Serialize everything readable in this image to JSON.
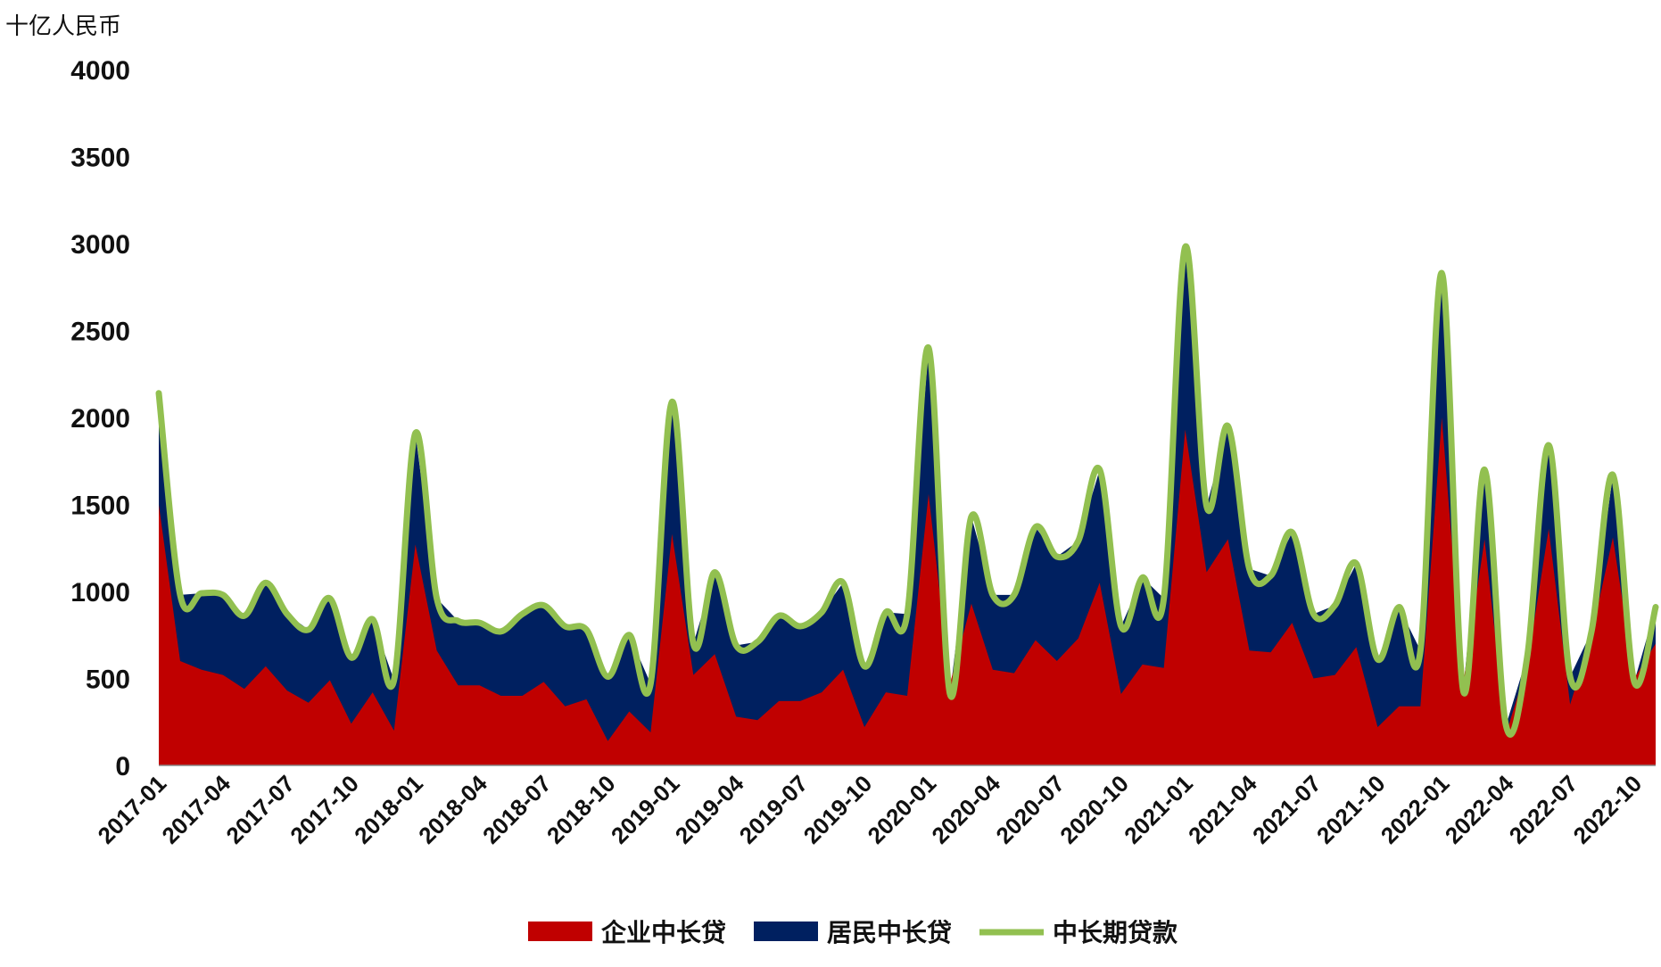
{
  "chart_data": {
    "type": "area",
    "unit_label": "十亿人民币",
    "ylim": [
      0,
      4000
    ],
    "y_ticks": [
      0,
      500,
      1000,
      1500,
      2000,
      2500,
      3000,
      3500,
      4000
    ],
    "grid": false,
    "legend_position": "bottom",
    "x": [
      "2017-01",
      "2017-02",
      "2017-03",
      "2017-04",
      "2017-05",
      "2017-06",
      "2017-07",
      "2017-08",
      "2017-09",
      "2017-10",
      "2017-11",
      "2017-12",
      "2018-01",
      "2018-02",
      "2018-03",
      "2018-04",
      "2018-05",
      "2018-06",
      "2018-07",
      "2018-08",
      "2018-09",
      "2018-10",
      "2018-11",
      "2018-12",
      "2019-01",
      "2019-02",
      "2019-03",
      "2019-04",
      "2019-05",
      "2019-06",
      "2019-07",
      "2019-08",
      "2019-09",
      "2019-10",
      "2019-11",
      "2019-12",
      "2020-01",
      "2020-02",
      "2020-03",
      "2020-04",
      "2020-05",
      "2020-06",
      "2020-07",
      "2020-08",
      "2020-09",
      "2020-10",
      "2020-11",
      "2020-12",
      "2021-01",
      "2021-02",
      "2021-03",
      "2021-04",
      "2021-05",
      "2021-06",
      "2021-07",
      "2021-08",
      "2021-09",
      "2021-10",
      "2021-11",
      "2021-12",
      "2022-01",
      "2022-02",
      "2022-03",
      "2022-04",
      "2022-05",
      "2022-06",
      "2022-07",
      "2022-08",
      "2022-09",
      "2022-10",
      "2022-11"
    ],
    "x_tick_labels": [
      "2017-01",
      "2017-04",
      "2017-07",
      "2017-10",
      "2018-01",
      "2018-04",
      "2018-07",
      "2018-10",
      "2019-01",
      "2019-04",
      "2019-07",
      "2019-10",
      "2020-01",
      "2020-04",
      "2020-07",
      "2020-10",
      "2021-01",
      "2021-04",
      "2021-07",
      "2021-10",
      "2022-01",
      "2022-04",
      "2022-07",
      "2022-10"
    ],
    "series": [
      {
        "name": "企业中长贷",
        "type": "area",
        "color": "#c00000",
        "values": [
          1500,
          600,
          550,
          520,
          440,
          570,
          430,
          360,
          490,
          240,
          420,
          200,
          1270,
          660,
          460,
          460,
          400,
          400,
          480,
          340,
          380,
          140,
          310,
          190,
          1330,
          520,
          640,
          280,
          260,
          370,
          370,
          420,
          550,
          220,
          420,
          400,
          1560,
          470,
          930,
          550,
          530,
          720,
          600,
          730,
          1050,
          410,
          580,
          560,
          1930,
          1110,
          1300,
          660,
          650,
          820,
          500,
          520,
          680,
          220,
          340,
          340,
          2000,
          470,
          1300,
          180,
          580,
          1360,
          350,
          750,
          1310,
          500,
          700
        ]
      },
      {
        "name": "居民中长贷",
        "type": "area",
        "color": "#002060",
        "values": [
          640,
          380,
          440,
          460,
          420,
          480,
          440,
          420,
          470,
          380,
          420,
          290,
          640,
          300,
          370,
          360,
          370,
          470,
          440,
          460,
          400,
          370,
          440,
          280,
          760,
          180,
          470,
          410,
          450,
          490,
          430,
          460,
          500,
          350,
          460,
          470,
          840,
          -60,
          500,
          430,
          450,
          650,
          600,
          560,
          650,
          390,
          500,
          400,
          1050,
          380,
          650,
          470,
          440,
          520,
          370,
          400,
          480,
          390,
          570,
          320,
          830,
          -40,
          400,
          50,
          50,
          480,
          160,
          20,
          360,
          -20,
          210
        ]
      },
      {
        "name": "中长期贷款",
        "type": "line",
        "color": "#92c050",
        "values": [
          2140,
          980,
          990,
          980,
          860,
          1050,
          870,
          780,
          960,
          620,
          840,
          490,
          1910,
          960,
          830,
          820,
          770,
          870,
          920,
          800,
          780,
          510,
          750,
          470,
          2090,
          700,
          1110,
          690,
          710,
          860,
          800,
          880,
          1050,
          570,
          880,
          870,
          2400,
          410,
          1430,
          980,
          980,
          1370,
          1200,
          1290,
          1700,
          800,
          1080,
          960,
          2980,
          1490,
          1950,
          1130,
          1090,
          1340,
          870,
          920,
          1160,
          610,
          910,
          660,
          2830,
          430,
          1700,
          230,
          630,
          1840,
          510,
          770,
          1670,
          480,
          910
        ]
      }
    ]
  }
}
